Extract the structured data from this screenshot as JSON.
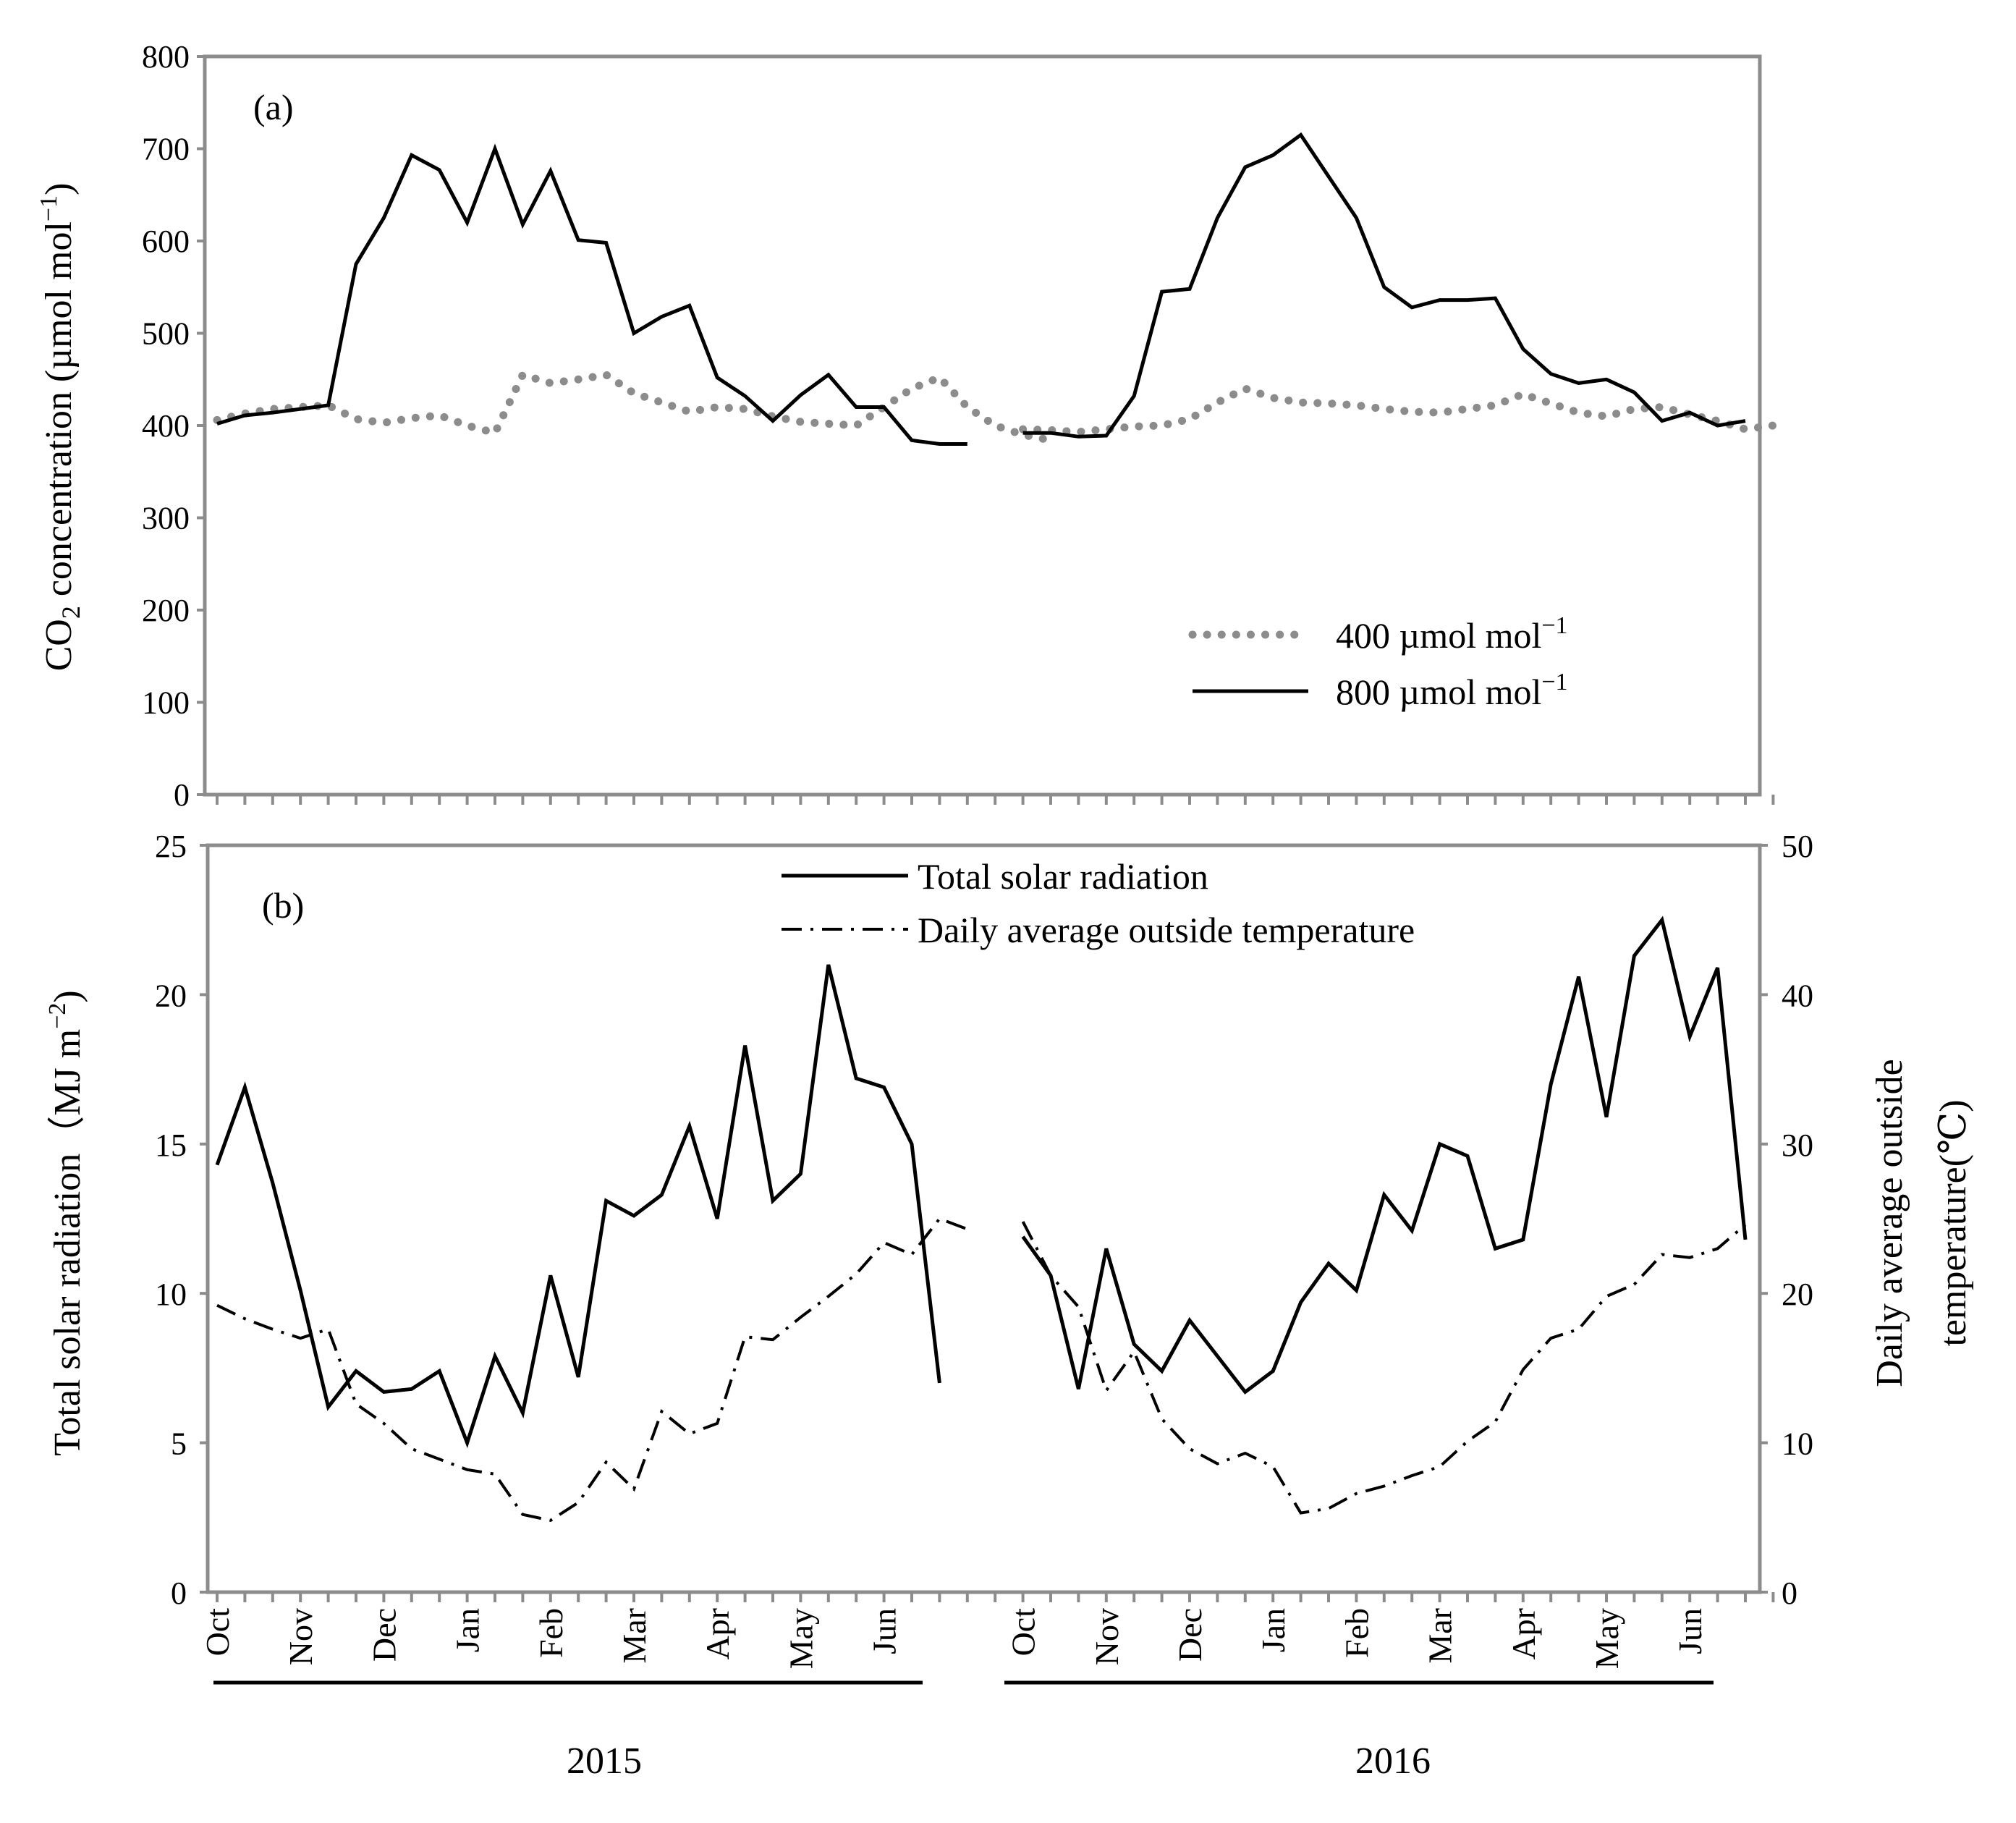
{
  "chart_data": [
    {
      "type": "line",
      "panel_label": "(a)",
      "ylabel_main": "CO",
      "ylabel_sub": "2",
      "ylabel_rest": " concentration (µmol mol",
      "ylabel_sup": "−1",
      "ylabel_close": ")",
      "ylim": [
        0,
        800
      ],
      "yticks": [
        "0",
        "100",
        "200",
        "300",
        "400",
        "500",
        "600",
        "700",
        "800"
      ],
      "colors": {
        "s400": "#8c8c8c",
        "s800": "#000000",
        "frame": "#8c8c8c"
      },
      "series": [
        {
          "name": "400 µmol mol⁻¹",
          "legend_main": "400 µmol mol",
          "legend_sup": "−1",
          "style": "dotted",
          "segments": [
            [
              406,
              413,
              418,
              420,
              422,
              407,
              403,
              408,
              411,
              400,
              392,
              455,
              446,
              450,
              455,
              435,
              425,
              415,
              420,
              418,
              410,
              404,
              402,
              400,
              420,
              440,
              452,
              420,
              400,
              390,
              384
            ],
            [
              396,
              395,
              393,
              396,
              399,
              400,
              407,
              425,
              440,
              430,
              425,
              424,
              422,
              418,
              415,
              414,
              418,
              422,
              434,
              424,
              414,
              410,
              418,
              420,
              412,
              405,
              396,
              400
            ]
          ]
        },
        {
          "name": "800 µmol mol⁻¹",
          "legend_main": "800 µmol mol",
          "legend_sup": "−1",
          "style": "solid",
          "segments": [
            [
              402,
              411,
              414,
              418,
              422,
              575,
              625,
              693,
              677,
              620,
              700,
              618,
              676,
              601,
              598,
              500,
              518,
              530,
              452,
              432,
              405,
              433,
              455,
              420,
              420,
              384,
              380,
              380
            ],
            [
              392,
              392,
              388,
              389,
              432,
              545,
              548,
              625,
              680,
              693,
              715,
              670,
              625,
              550,
              528,
              536,
              536,
              538,
              483,
              456,
              446,
              450,
              436,
              405,
              414,
              400,
              405
            ]
          ]
        }
      ]
    },
    {
      "type": "line",
      "panel_label": "(b)",
      "ylabel_left_main": "Total solar radiation（MJ m",
      "ylabel_left_sup": "−2",
      "ylabel_left_close": ")",
      "ylabel_right_line1": "Daily average outside",
      "ylabel_right_line2": "temperature(℃)",
      "ylim_left": [
        0,
        25
      ],
      "ylim_right": [
        0,
        50
      ],
      "yticks_left": [
        "0",
        "5",
        "10",
        "15",
        "20",
        "25"
      ],
      "yticks_right": [
        "0",
        "10",
        "20",
        "30",
        "40",
        "50"
      ],
      "series": [
        {
          "name": "Total solar radiation",
          "axis": "left",
          "style": "solid",
          "segments": [
            [
              14.3,
              16.9,
              13.7,
              10.1,
              6.2,
              7.4,
              6.7,
              6.8,
              7.4,
              5.0,
              7.9,
              6.0,
              10.6,
              7.2,
              13.1,
              12.6,
              13.3,
              15.6,
              12.5,
              18.3,
              13.1,
              14.0,
              21.0,
              17.2,
              16.9,
              15.0,
              7.0
            ],
            [
              11.9,
              10.6,
              6.8,
              11.5,
              8.3,
              7.4,
              9.1,
              7.9,
              6.7,
              7.4,
              9.7,
              11.0,
              10.1,
              13.3,
              12.1,
              15.0,
              14.6,
              11.5,
              11.8,
              17.0,
              20.6,
              15.9,
              21.3,
              22.5,
              18.6,
              20.9,
              11.8
            ]
          ]
        },
        {
          "name": "Daily average outside temperature",
          "axis": "right",
          "style": "dashdot",
          "segments": [
            [
              19.2,
              18.3,
              17.6,
              17.0,
              17.6,
              12.6,
              11.3,
              9.6,
              8.9,
              8.2,
              7.9,
              5.2,
              4.8,
              6.0,
              8.7,
              6.9,
              12.1,
              10.6,
              11.3,
              17.1,
              16.9,
              18.4,
              19.8,
              21.3,
              23.4,
              22.6,
              25.0,
              24.3
            ],
            [
              24.8,
              21.2,
              19.1,
              13.5,
              16.1,
              11.6,
              9.6,
              8.6,
              9.3,
              8.4,
              5.3,
              5.6,
              6.6,
              7.1,
              7.8,
              8.4,
              10.1,
              11.4,
              14.9,
              17.0,
              17.6,
              19.8,
              20.6,
              22.6,
              22.4,
              23.0,
              24.6
            ]
          ]
        }
      ]
    }
  ],
  "months": [
    "Oct",
    "Nov",
    "Dec",
    "Jan",
    "Feb",
    "Mar",
    "Apr",
    "May",
    "Jun"
  ],
  "years": [
    "2015",
    "2016"
  ]
}
